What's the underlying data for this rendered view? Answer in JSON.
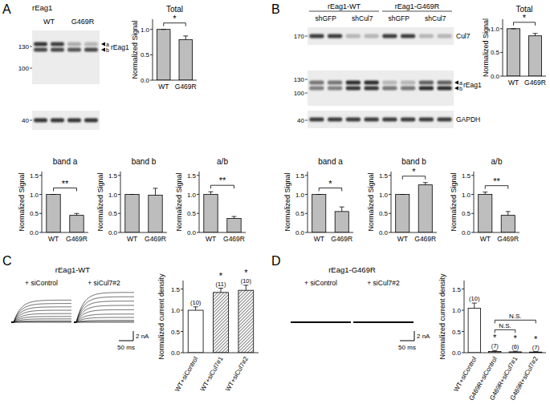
{
  "panel_labels": [
    "A",
    "B",
    "C",
    "D"
  ],
  "blots": [
    {
      "header": "rEag1",
      "lanes": [
        "WT",
        "G469R"
      ],
      "markers": [
        130,
        100,
        40
      ],
      "bands": [
        "a",
        "b"
      ],
      "labels": [
        "rEag1"
      ]
    },
    {
      "groups": [
        "rEag1-WT",
        "rEag1-G469R"
      ],
      "lanes": [
        "shGFP",
        "shCul7",
        "shGFP",
        "shCul7"
      ],
      "markers": [
        170,
        130,
        100,
        40
      ],
      "bands": [
        "a",
        "b"
      ],
      "labels": [
        "Cul7",
        "rEag1",
        "GAPDH"
      ]
    }
  ],
  "recordings": [
    {
      "title": "rEag1-WT",
      "conditions": [
        "+ siControl",
        "+ siCul7#2"
      ],
      "duration": 200,
      "amplitudes": [
        [
          0,
          0.1,
          0.3,
          0.7,
          1.2,
          1.8,
          2.5,
          3.2,
          3.9,
          4.6
        ],
        [
          0,
          0.15,
          0.4,
          1.0,
          1.7,
          2.6,
          3.5,
          4.4,
          5.3,
          6.2
        ]
      ],
      "scale_bar": {
        "current": 2,
        "current_label": "2 nA",
        "time": 50,
        "time_label": "50 ms"
      }
    },
    {
      "title": "rEag1-G469R",
      "conditions": [
        "+ siControl",
        "+ siCul7#2"
      ],
      "duration": 200,
      "amplitudes": [
        [
          0,
          0,
          0,
          0,
          0,
          0,
          0.01,
          0.02,
          0.03,
          0.04
        ],
        [
          0,
          0,
          0,
          0,
          0,
          0,
          0.01,
          0.02,
          0.03,
          0.04
        ]
      ],
      "scale_bar": {
        "current": 2,
        "current_label": "2 nA",
        "time": 50,
        "time_label": "50 ms"
      }
    }
  ],
  "chart_data": [
    {
      "type": "bar",
      "title": "Total",
      "categories": [
        "WT",
        "G469R"
      ],
      "values": [
        1,
        0.8
      ],
      "errors": [
        0,
        0.07
      ],
      "y_label": "Normalized Signal",
      "ylim": [
        0,
        1.2
      ],
      "yticks": [
        {
          "value": 0,
          "label": "0.0"
        },
        0.5,
        {
          "value": 1,
          "label": "1.0"
        }
      ],
      "colors": [
        "#bdbdbd",
        "#bdbdbd"
      ],
      "annotations": [
        {
          "text": "*",
          "categories": [
            "WT",
            "G469R"
          ]
        }
      ]
    },
    {
      "type": "bar",
      "title": "band a",
      "categories": [
        "WT",
        "G469R"
      ],
      "values": [
        1,
        0.45
      ],
      "errors": [
        0,
        0.05
      ],
      "y_label": "Normalized Signal",
      "ylim": [
        0,
        1.6
      ],
      "yticks": [
        {
          "value": 0,
          "label": "0.0"
        },
        0.5,
        {
          "value": 1,
          "label": "1.0"
        },
        1.5
      ],
      "colors": [
        "#bdbdbd",
        "#bdbdbd"
      ],
      "annotations": [
        {
          "text": "**",
          "categories": [
            "WT",
            "G469R"
          ]
        }
      ]
    },
    {
      "type": "bar",
      "title": "band b",
      "categories": [
        "WT",
        "G469R"
      ],
      "values": [
        1,
        0.98
      ],
      "errors": [
        0,
        0.18
      ],
      "y_label": "Normalized Signal",
      "ylim": [
        0,
        1.6
      ],
      "yticks": [
        {
          "value": 0,
          "label": "0.0"
        },
        0.5,
        {
          "value": 1,
          "label": "1.0"
        },
        1.5
      ],
      "colors": [
        "#bdbdbd",
        "#bdbdbd"
      ]
    },
    {
      "type": "bar",
      "title": "a/b",
      "categories": [
        "WT",
        "G469R"
      ],
      "values": [
        1,
        0.37
      ],
      "errors": [
        0.07,
        0.05
      ],
      "y_label": "Normalized Signal",
      "ylim": [
        0,
        1.6
      ],
      "yticks": [
        {
          "value": 0,
          "label": "0.0"
        },
        0.5,
        {
          "value": 1,
          "label": "1.0"
        },
        1.5
      ],
      "colors": [
        "#bdbdbd",
        "#bdbdbd"
      ],
      "annotations": [
        {
          "text": "**",
          "categories": [
            "WT",
            "G469R"
          ]
        }
      ]
    },
    {
      "type": "bar",
      "title": "Total",
      "categories": [
        "WT",
        "G469R"
      ],
      "values": [
        1,
        0.85
      ],
      "errors": [
        0,
        0.05
      ],
      "y_label": "Normalized Signal",
      "ylim": [
        0,
        1.2
      ],
      "yticks": [
        {
          "value": 0,
          "label": "0.0"
        },
        0.5,
        {
          "value": 1,
          "label": "1.0"
        }
      ],
      "colors": [
        "#bdbdbd",
        "#bdbdbd"
      ],
      "annotations": [
        {
          "text": "*",
          "categories": [
            "WT",
            "G469R"
          ]
        }
      ]
    },
    {
      "type": "bar",
      "title": "band a",
      "categories": [
        "WT",
        "G469R"
      ],
      "values": [
        1,
        0.55
      ],
      "errors": [
        0,
        0.12
      ],
      "y_label": "Normalized Signal",
      "ylim": [
        0,
        1.6
      ],
      "yticks": [
        {
          "value": 0,
          "label": "0.0"
        },
        0.5,
        {
          "value": 1,
          "label": "1.0"
        },
        1.5
      ],
      "colors": [
        "#bdbdbd",
        "#bdbdbd"
      ],
      "annotations": [
        {
          "text": "*",
          "categories": [
            "WT",
            "G469R"
          ]
        }
      ]
    },
    {
      "type": "bar",
      "title": "band b",
      "categories": [
        "WT",
        "G469R"
      ],
      "values": [
        1,
        1.25
      ],
      "errors": [
        0,
        0.06
      ],
      "y_label": "Normalized Signal",
      "ylim": [
        0,
        1.6
      ],
      "yticks": [
        {
          "value": 0,
          "label": "0.0"
        },
        0.5,
        {
          "value": 1,
          "label": "1.0"
        },
        1.5
      ],
      "colors": [
        "#bdbdbd",
        "#bdbdbd"
      ],
      "annotations": [
        {
          "text": "*",
          "categories": [
            "WT",
            "G469R"
          ]
        }
      ]
    },
    {
      "type": "bar",
      "title": "a/b",
      "categories": [
        "WT",
        "G469R"
      ],
      "values": [
        1,
        0.45
      ],
      "errors": [
        0.06,
        0.1
      ],
      "y_label": "Normalized Signal",
      "ylim": [
        0,
        1.6
      ],
      "yticks": [
        {
          "value": 0,
          "label": "0.0"
        },
        0.5,
        {
          "value": 1,
          "label": "1.0"
        },
        1.5
      ],
      "colors": [
        "#bdbdbd",
        "#bdbdbd"
      ],
      "annotations": [
        {
          "text": "**",
          "categories": [
            "WT",
            "G469R"
          ]
        }
      ]
    },
    {
      "type": "bar",
      "categories": [
        "WT+siControl",
        "WT+siCul7#1",
        "WT+siCul7#2"
      ],
      "values": [
        1,
        1.42,
        1.47
      ],
      "errors": [
        0.08,
        0.1,
        0.12
      ],
      "n_labels": [
        "(10)",
        "(11)",
        "(10)"
      ],
      "y_label": "Normalized current density",
      "ylim": [
        0,
        1.7
      ],
      "yticks": [
        {
          "value": 0,
          "label": "0.0"
        },
        0.5,
        {
          "value": 1,
          "label": "1.0"
        },
        1.5
      ],
      "colors": [
        "#ffffff",
        "#8a8a8a",
        "#8a8a8a"
      ],
      "annotations": [
        {
          "text": "*",
          "categories": [
            "WT+siCul7#1"
          ]
        },
        {
          "text": "*",
          "categories": [
            "WT+siCul7#2"
          ]
        }
      ]
    },
    {
      "type": "bar",
      "categories": [
        "WT+siControl",
        "G469R+siControl",
        "G469R+siCul7#1",
        "G469R+siCul7#2"
      ],
      "values": [
        1.05,
        0.03,
        0.02,
        0.015
      ],
      "errors": [
        0.12,
        0.02,
        0.015,
        0.01
      ],
      "n_labels": [
        "(10)",
        "(7)",
        "(6)",
        "(7)"
      ],
      "y_label": "Normalized current density",
      "ylim": [
        0,
        1.7
      ],
      "yticks": [
        {
          "value": 0,
          "label": "0.0"
        },
        0.5,
        {
          "value": 1,
          "label": "1.0"
        },
        1.5
      ],
      "colors": [
        "#ffffff",
        "#8a8a8a",
        "#8a8a8a",
        "#8a8a8a"
      ],
      "annotations": [
        {
          "text": "*",
          "categories": [
            "G469R+siControl"
          ]
        },
        {
          "text": "*",
          "categories": [
            "G469R+siCul7#1"
          ]
        },
        {
          "text": "*",
          "categories": [
            "G469R+siCul7#2"
          ]
        },
        {
          "text": "N.S.",
          "categories": [
            "G469R+siControl",
            "G469R+siCul7#1"
          ]
        },
        {
          "text": "N.S.",
          "categories": [
            "G469R+siControl",
            "G469R+siCul7#2"
          ]
        }
      ]
    }
  ]
}
